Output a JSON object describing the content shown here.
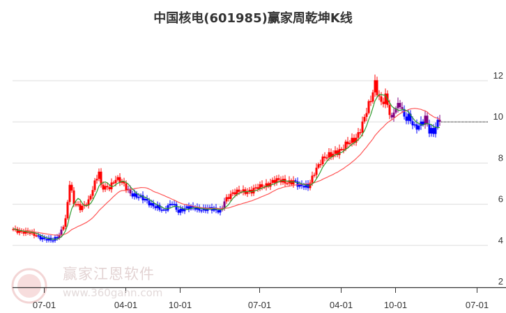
{
  "chart_data": {
    "type": "candlestick",
    "title": "中国核电(601985)赢家周乾坤K线",
    "period": "weekly",
    "ylim": [
      2,
      12.8
    ],
    "y_ticks": [
      2,
      4,
      6,
      8,
      10,
      12
    ],
    "x_ticks": [
      {
        "label": "07-01",
        "week": 15
      },
      {
        "label": "04-01",
        "week": 54
      },
      {
        "label": "10-01",
        "week": 80
      },
      {
        "label": "07-01",
        "week": 118
      },
      {
        "label": "04-01",
        "week": 157
      },
      {
        "label": "10-01",
        "week": 183
      },
      {
        "label": "07-01",
        "week": 222
      }
    ],
    "weeks_total": 228,
    "close_waypoints": [
      [
        0,
        4.8
      ],
      [
        7,
        4.6
      ],
      [
        12,
        4.45
      ],
      [
        19,
        4.2
      ],
      [
        22,
        4.5
      ],
      [
        25,
        5.3
      ],
      [
        27,
        7.0
      ],
      [
        29,
        6.0
      ],
      [
        32,
        5.8
      ],
      [
        36,
        6.2
      ],
      [
        39,
        7.0
      ],
      [
        41,
        7.5
      ],
      [
        42,
        6.8
      ],
      [
        46,
        6.9
      ],
      [
        49,
        7.2
      ],
      [
        52,
        7.0
      ],
      [
        56,
        6.6
      ],
      [
        59,
        6.4
      ],
      [
        64,
        6.1
      ],
      [
        69,
        5.9
      ],
      [
        72,
        5.6
      ],
      [
        76,
        6.1
      ],
      [
        79,
        5.7
      ],
      [
        82,
        5.75
      ],
      [
        87,
        5.85
      ],
      [
        92,
        5.75
      ],
      [
        99,
        5.7
      ],
      [
        101,
        6.2
      ],
      [
        104,
        6.4
      ],
      [
        109,
        6.7
      ],
      [
        114,
        6.6
      ],
      [
        119,
        6.9
      ],
      [
        124,
        7.1
      ],
      [
        129,
        7.1
      ],
      [
        134,
        7.15
      ],
      [
        137,
        6.8
      ],
      [
        141,
        6.9
      ],
      [
        144,
        7.6
      ],
      [
        147,
        8.0
      ],
      [
        151,
        8.4
      ],
      [
        154,
        8.6
      ],
      [
        157,
        8.6
      ],
      [
        161,
        9.0
      ],
      [
        164,
        9.3
      ],
      [
        167,
        9.9
      ],
      [
        171,
        11.0
      ],
      [
        173,
        11.9
      ],
      [
        176,
        11.0
      ],
      [
        178,
        11.2
      ],
      [
        181,
        9.9
      ],
      [
        182,
        10.5
      ],
      [
        185,
        11.0
      ],
      [
        187,
        10.3
      ],
      [
        189,
        10.2
      ],
      [
        192,
        9.6
      ],
      [
        194,
        9.8
      ],
      [
        197,
        10.3
      ],
      [
        199,
        9.6
      ],
      [
        201,
        9.4
      ],
      [
        202,
        9.7
      ],
      [
        204,
        10.0
      ]
    ],
    "signal_ranges": [
      [
        0,
        11,
        "red"
      ],
      [
        12,
        21,
        "blue"
      ],
      [
        22,
        23,
        "purple"
      ],
      [
        24,
        54,
        "red"
      ],
      [
        55,
        56,
        "purple"
      ],
      [
        57,
        99,
        "blue"
      ],
      [
        100,
        101,
        "purple"
      ],
      [
        102,
        134,
        "red"
      ],
      [
        135,
        141,
        "blue"
      ],
      [
        142,
        180,
        "red"
      ],
      [
        181,
        183,
        "purple"
      ],
      [
        184,
        186,
        "purple"
      ],
      [
        187,
        196,
        "blue"
      ],
      [
        197,
        198,
        "purple"
      ],
      [
        199,
        203,
        "blue"
      ],
      [
        204,
        204,
        "purple"
      ]
    ],
    "ma_short_weeks": 6,
    "ma_long_weeks": 26,
    "last_close": 10.0,
    "grid": true,
    "colors": {
      "red": "#ff0000",
      "blue": "#0000ff",
      "purple": "#800080",
      "ma_short": "#2e9b2e",
      "ma_long": "#ff5555",
      "grid": "#dddddd"
    }
  },
  "watermark": {
    "name": "赢家江恩软件",
    "url": "www.360gann.com",
    "seal": "江赢恩家"
  }
}
